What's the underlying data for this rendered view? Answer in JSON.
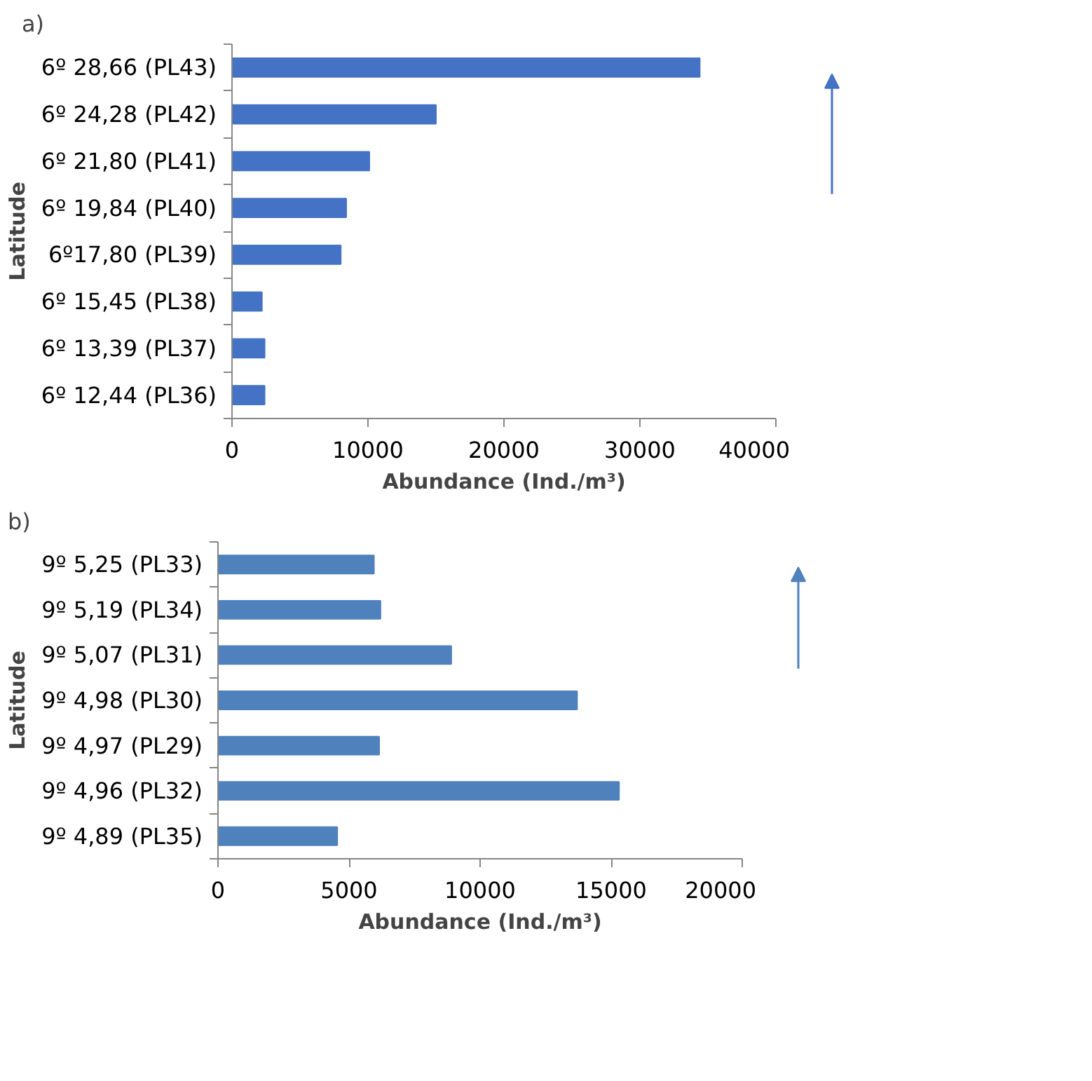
{
  "chart_data": [
    {
      "type": "bar",
      "orientation": "horizontal",
      "title": "a)",
      "xlabel": "Abundance (Ind./m³)",
      "ylabel": "Latitude",
      "categories": [
        "6º 28,66 (PL43)",
        "6º 24,28 (PL42)",
        "6º 21,80 (PL41)",
        "6º 19,84 (PL40)",
        "6º17,80 (PL39)",
        "6º 15,45 (PL38)",
        "6º 13,39 (PL37)",
        "6º 12,44 (PL36)"
      ],
      "values": [
        34400,
        15000,
        10100,
        8400,
        8000,
        2200,
        2400,
        2400
      ],
      "color": "#4472c4",
      "xlim": [
        0,
        40000
      ],
      "xticks": [
        0,
        10000,
        20000,
        30000,
        40000
      ]
    },
    {
      "type": "bar",
      "orientation": "horizontal",
      "title": "b)",
      "xlabel": "Abundance (Ind./m³)",
      "ylabel": "Latitude",
      "categories": [
        "9º 5,25 (PL33)",
        "9º 5,19 (PL34)",
        "9º 5,07 (PL31)",
        "9º 4,98 (PL30)",
        "9º 4,97 (PL29)",
        "9º 4,96 (PL32)",
        "9º 4,89 (PL35)"
      ],
      "values": [
        5950,
        6200,
        8900,
        13700,
        6150,
        15300,
        4550
      ],
      "color": "#4f81bd",
      "xlim": [
        0,
        20000
      ],
      "xticks": [
        0,
        5000,
        10000,
        15000,
        20000
      ]
    }
  ]
}
